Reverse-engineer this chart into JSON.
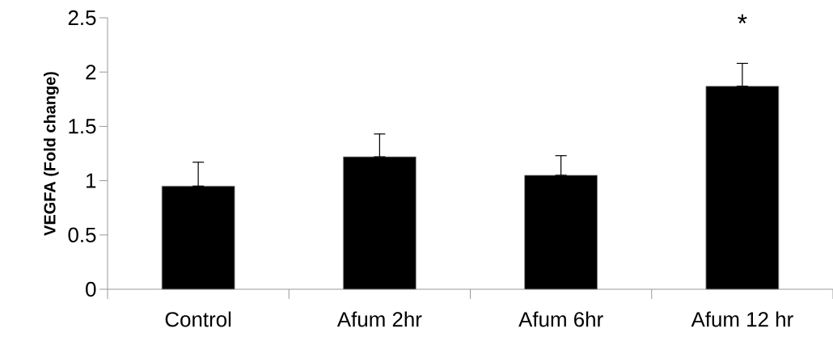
{
  "chart_data": {
    "type": "bar",
    "ylabel": "VEGFA (Fold change)",
    "categories": [
      "Control",
      "Afum 2hr",
      "Afum 6hr",
      "Afum 12 hr"
    ],
    "values": [
      0.95,
      1.22,
      1.05,
      1.87
    ],
    "errors": [
      [
        0.95,
        1.17
      ],
      [
        1.22,
        1.43
      ],
      [
        1.05,
        1.23
      ],
      [
        1.87,
        2.08
      ]
    ],
    "color": "#000000",
    "ylim": [
      0,
      2.5
    ],
    "yticks": [
      0,
      0.5,
      1,
      1.5,
      2,
      2.5
    ],
    "annotations": [
      "*"
    ],
    "grid": false
  }
}
